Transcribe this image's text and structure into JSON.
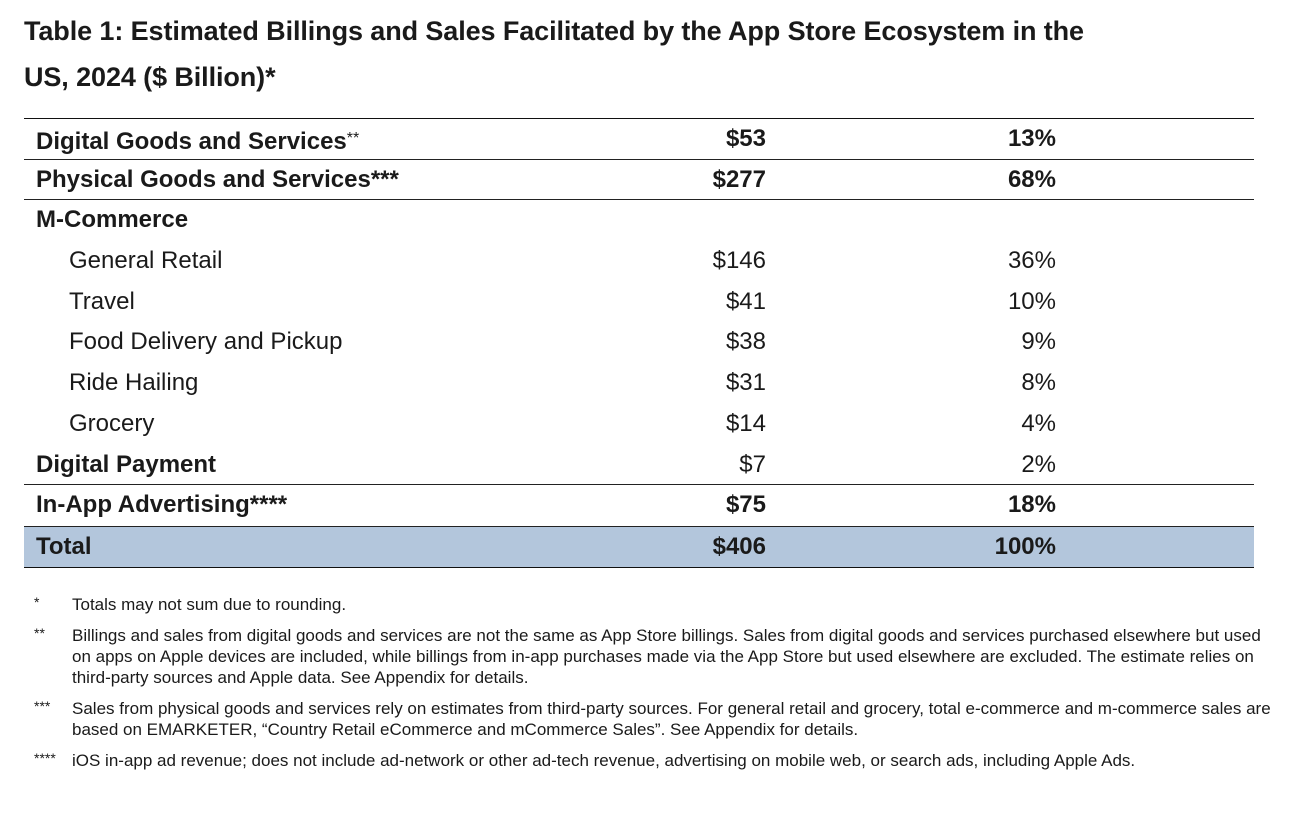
{
  "title": {
    "line1": "Table 1: Estimated Billings and Sales Facilitated by the App Store Ecosystem in the",
    "line2": "US, 2024 ($ Billion)*"
  },
  "table": {
    "rows": [
      {
        "label": "Digital Goods and Services",
        "marker": "**",
        "amount": "$53",
        "share": "13%"
      },
      {
        "label": "Physical Goods and Services",
        "marker": "***",
        "amount": "$277",
        "share": "68%"
      },
      {
        "label": "M-Commerce",
        "marker": "",
        "amount": "",
        "share": ""
      },
      {
        "label": "General Retail",
        "marker": "",
        "amount": "$146",
        "share": "36%"
      },
      {
        "label": "Travel",
        "marker": "",
        "amount": "$41",
        "share": "10%"
      },
      {
        "label": "Food Delivery and Pickup",
        "marker": "",
        "amount": "$38",
        "share": "9%"
      },
      {
        "label": "Ride Hailing",
        "marker": "",
        "amount": "$31",
        "share": "8%"
      },
      {
        "label": "Grocery",
        "marker": "",
        "amount": "$14",
        "share": "4%"
      },
      {
        "label": "Digital Payment",
        "marker": "",
        "amount": "$7",
        "share": "2%"
      },
      {
        "label": "In-App Advertising",
        "marker": "****",
        "amount": "$75",
        "share": "18%"
      },
      {
        "label": "Total",
        "marker": "",
        "amount": "$406",
        "share": "100%"
      }
    ],
    "total_row_color": "#b3c6dc"
  },
  "notes": [
    {
      "mark": "*",
      "text": "Totals may not sum due to rounding."
    },
    {
      "mark": "**",
      "text": "Billings and sales from digital goods and services are not the same as App Store billings. Sales from digital goods and services purchased elsewhere but used on apps on Apple devices are included, while billings from in-app purchases made via the App Store but used elsewhere are excluded. The estimate relies on third-party sources and Apple data. See Appendix for details."
    },
    {
      "mark": "***",
      "text": "Sales from physical goods and services rely on estimates from third-party sources. For general retail and grocery, total e-commerce and m-commerce sales are based on EMARKETER, “Country Retail eCommerce and mCommerce Sales”. See Appendix for details."
    },
    {
      "mark": "****",
      "text": "iOS in-app ad revenue; does not include ad-network or other ad-tech revenue, advertising on mobile web, or search ads, including Apple Ads."
    }
  ]
}
